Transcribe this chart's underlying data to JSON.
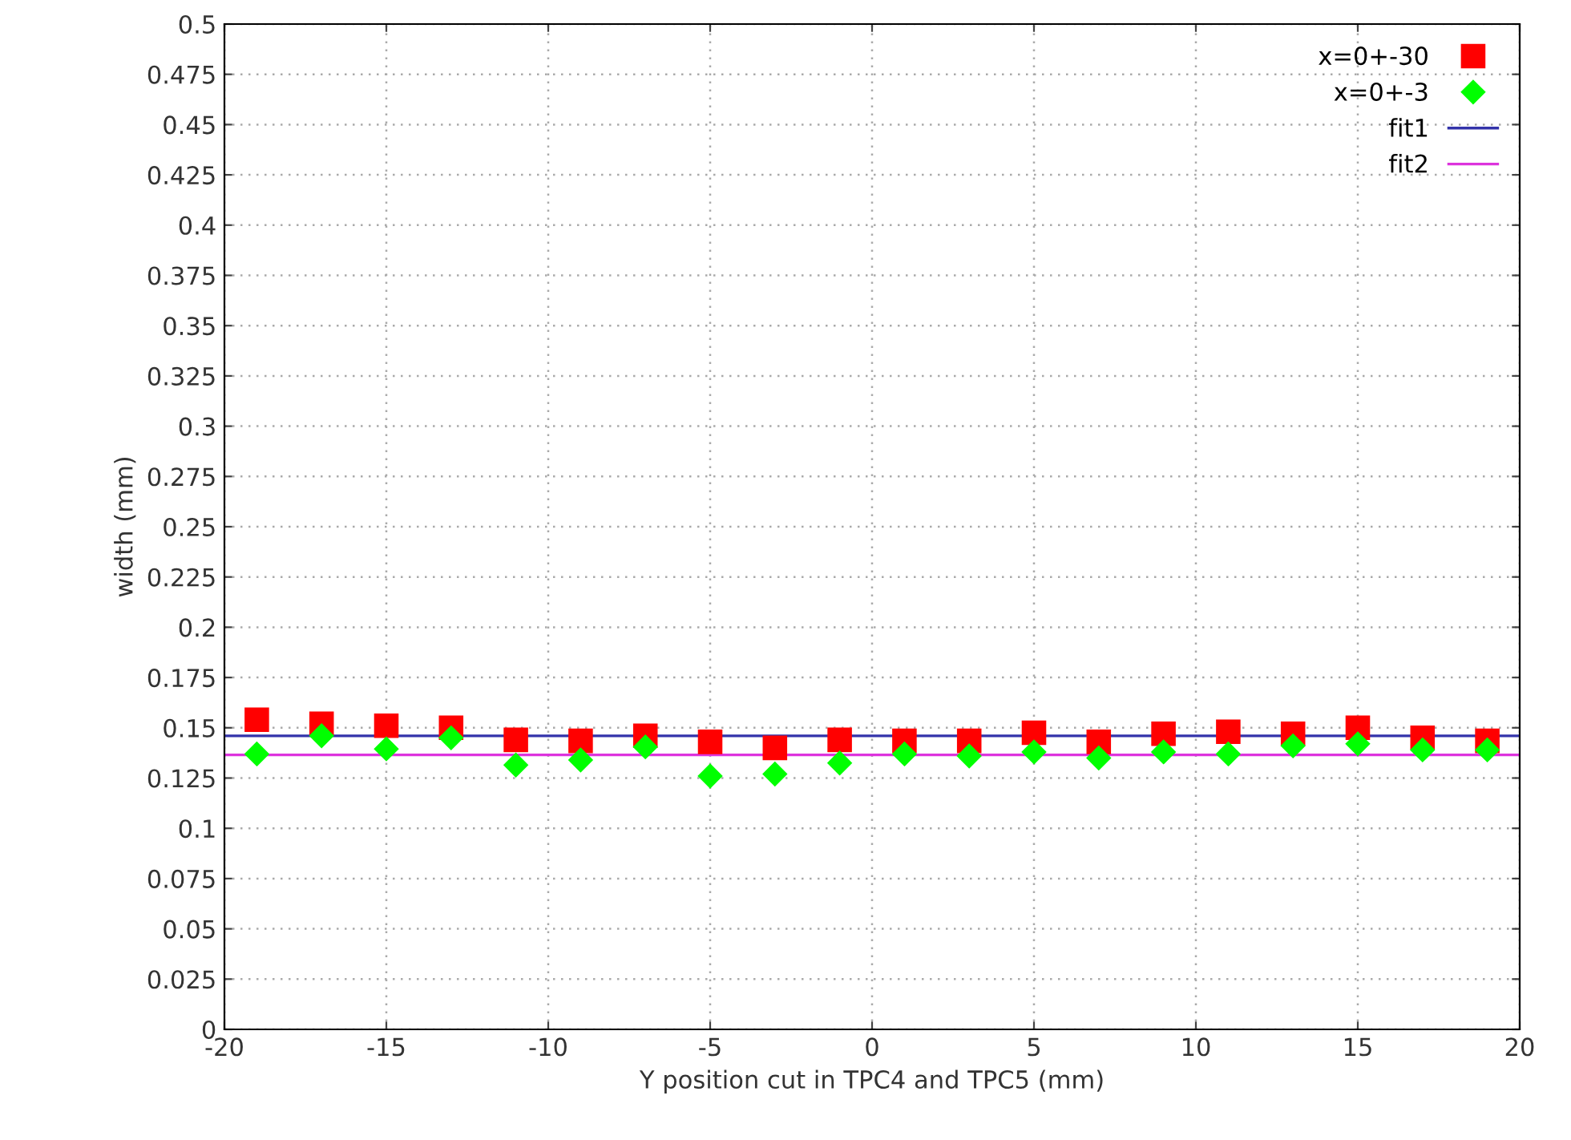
{
  "chart_data": {
    "type": "scatter",
    "xlabel": "Y position cut in TPC4 and TPC5 (mm)",
    "ylabel": "width (mm)",
    "x": [
      -19,
      -17,
      -15,
      -13,
      -11,
      -9,
      -7,
      -5,
      -3,
      -1,
      1,
      3,
      5,
      7,
      9,
      11,
      13,
      15,
      17,
      19
    ],
    "series": [
      {
        "name": "x=0+-30",
        "color": "#ff0000",
        "marker": "square",
        "values": [
          0.154,
          0.152,
          0.151,
          0.15,
          0.144,
          0.1435,
          0.146,
          0.143,
          0.14,
          0.144,
          0.1435,
          0.1435,
          0.1475,
          0.143,
          0.147,
          0.148,
          0.147,
          0.15,
          0.145,
          0.1435
        ]
      },
      {
        "name": "x=0+-3",
        "color": "#00ff00",
        "marker": "diamond",
        "values": [
          0.137,
          0.146,
          0.1395,
          0.145,
          0.1315,
          0.134,
          0.1405,
          0.126,
          0.127,
          0.1325,
          0.137,
          0.136,
          0.138,
          0.135,
          0.138,
          0.137,
          0.141,
          0.142,
          0.139,
          0.139
        ]
      }
    ],
    "ref_lines": [
      {
        "axis": "y",
        "value": 0.146,
        "label": "fit1",
        "color": "#3333aa"
      },
      {
        "axis": "y",
        "value": 0.1365,
        "label": "fit2",
        "color": "#dd33dd"
      }
    ],
    "xlim": [
      -20,
      20
    ],
    "xticks": [
      -20,
      -15,
      -10,
      -5,
      0,
      5,
      10,
      15,
      20
    ],
    "ylim": [
      0,
      0.5
    ],
    "yticks": [
      0,
      0.025,
      0.05,
      0.075,
      0.1,
      0.125,
      0.15,
      0.175,
      0.2,
      0.225,
      0.25,
      0.275,
      0.3,
      0.325,
      0.35,
      0.375,
      0.4,
      0.425,
      0.45,
      0.475,
      0.5
    ],
    "grid": true,
    "legend": "top right"
  }
}
